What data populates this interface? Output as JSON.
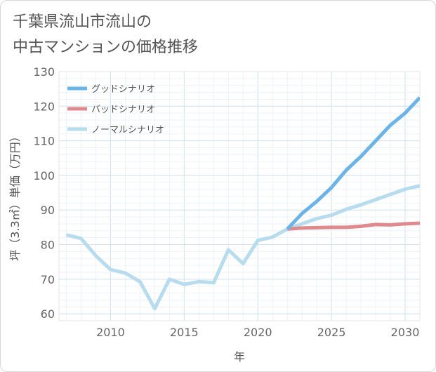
{
  "title_lines": [
    "千葉県流山市流山の",
    "中古マンションの価格推移"
  ],
  "chart_data": {
    "type": "line",
    "title": "千葉県流山市流山の中古マンションの価格推移",
    "xlabel": "年",
    "ylabel": "坪（3.3㎡）単価（万円）",
    "xlim": [
      2006.5,
      2031
    ],
    "ylim": [
      58,
      130
    ],
    "xticks": [
      2010,
      2015,
      2020,
      2025,
      2030
    ],
    "yticks": [
      60,
      70,
      80,
      90,
      100,
      110,
      120,
      130
    ],
    "grid": true,
    "legend_position": "top-left",
    "series": [
      {
        "name": "グッドシナリオ",
        "color": "#6cb4e8",
        "x": [
          2022,
          2023,
          2024,
          2025,
          2026,
          2027,
          2028,
          2029,
          2030,
          2031
        ],
        "y": [
          84.5,
          89.0,
          92.5,
          96.5,
          101.5,
          105.5,
          110.0,
          114.5,
          118.0,
          122.5
        ]
      },
      {
        "name": "バッドシナリオ",
        "color": "#df8a8e",
        "x": [
          2022,
          2023,
          2024,
          2025,
          2026,
          2027,
          2028,
          2029,
          2030,
          2031
        ],
        "y": [
          84.5,
          84.8,
          84.9,
          85.0,
          85.0,
          85.3,
          85.8,
          85.7,
          86.0,
          86.2
        ]
      },
      {
        "name": "ノーマルシナリオ",
        "color": "#b7dcee",
        "x": [
          2007,
          2008,
          2009,
          2010,
          2011,
          2012,
          2013,
          2014,
          2015,
          2016,
          2017,
          2018,
          2019,
          2020,
          2021,
          2022,
          2023,
          2024,
          2025,
          2026,
          2027,
          2028,
          2029,
          2030,
          2031
        ],
        "y": [
          82.8,
          81.8,
          76.8,
          72.8,
          71.8,
          69.3,
          61.5,
          70.0,
          68.5,
          69.3,
          69.0,
          78.5,
          74.5,
          81.2,
          82.2,
          84.5,
          86.0,
          87.5,
          88.5,
          90.2,
          91.5,
          93.0,
          94.5,
          96.0,
          97.0
        ]
      }
    ]
  }
}
